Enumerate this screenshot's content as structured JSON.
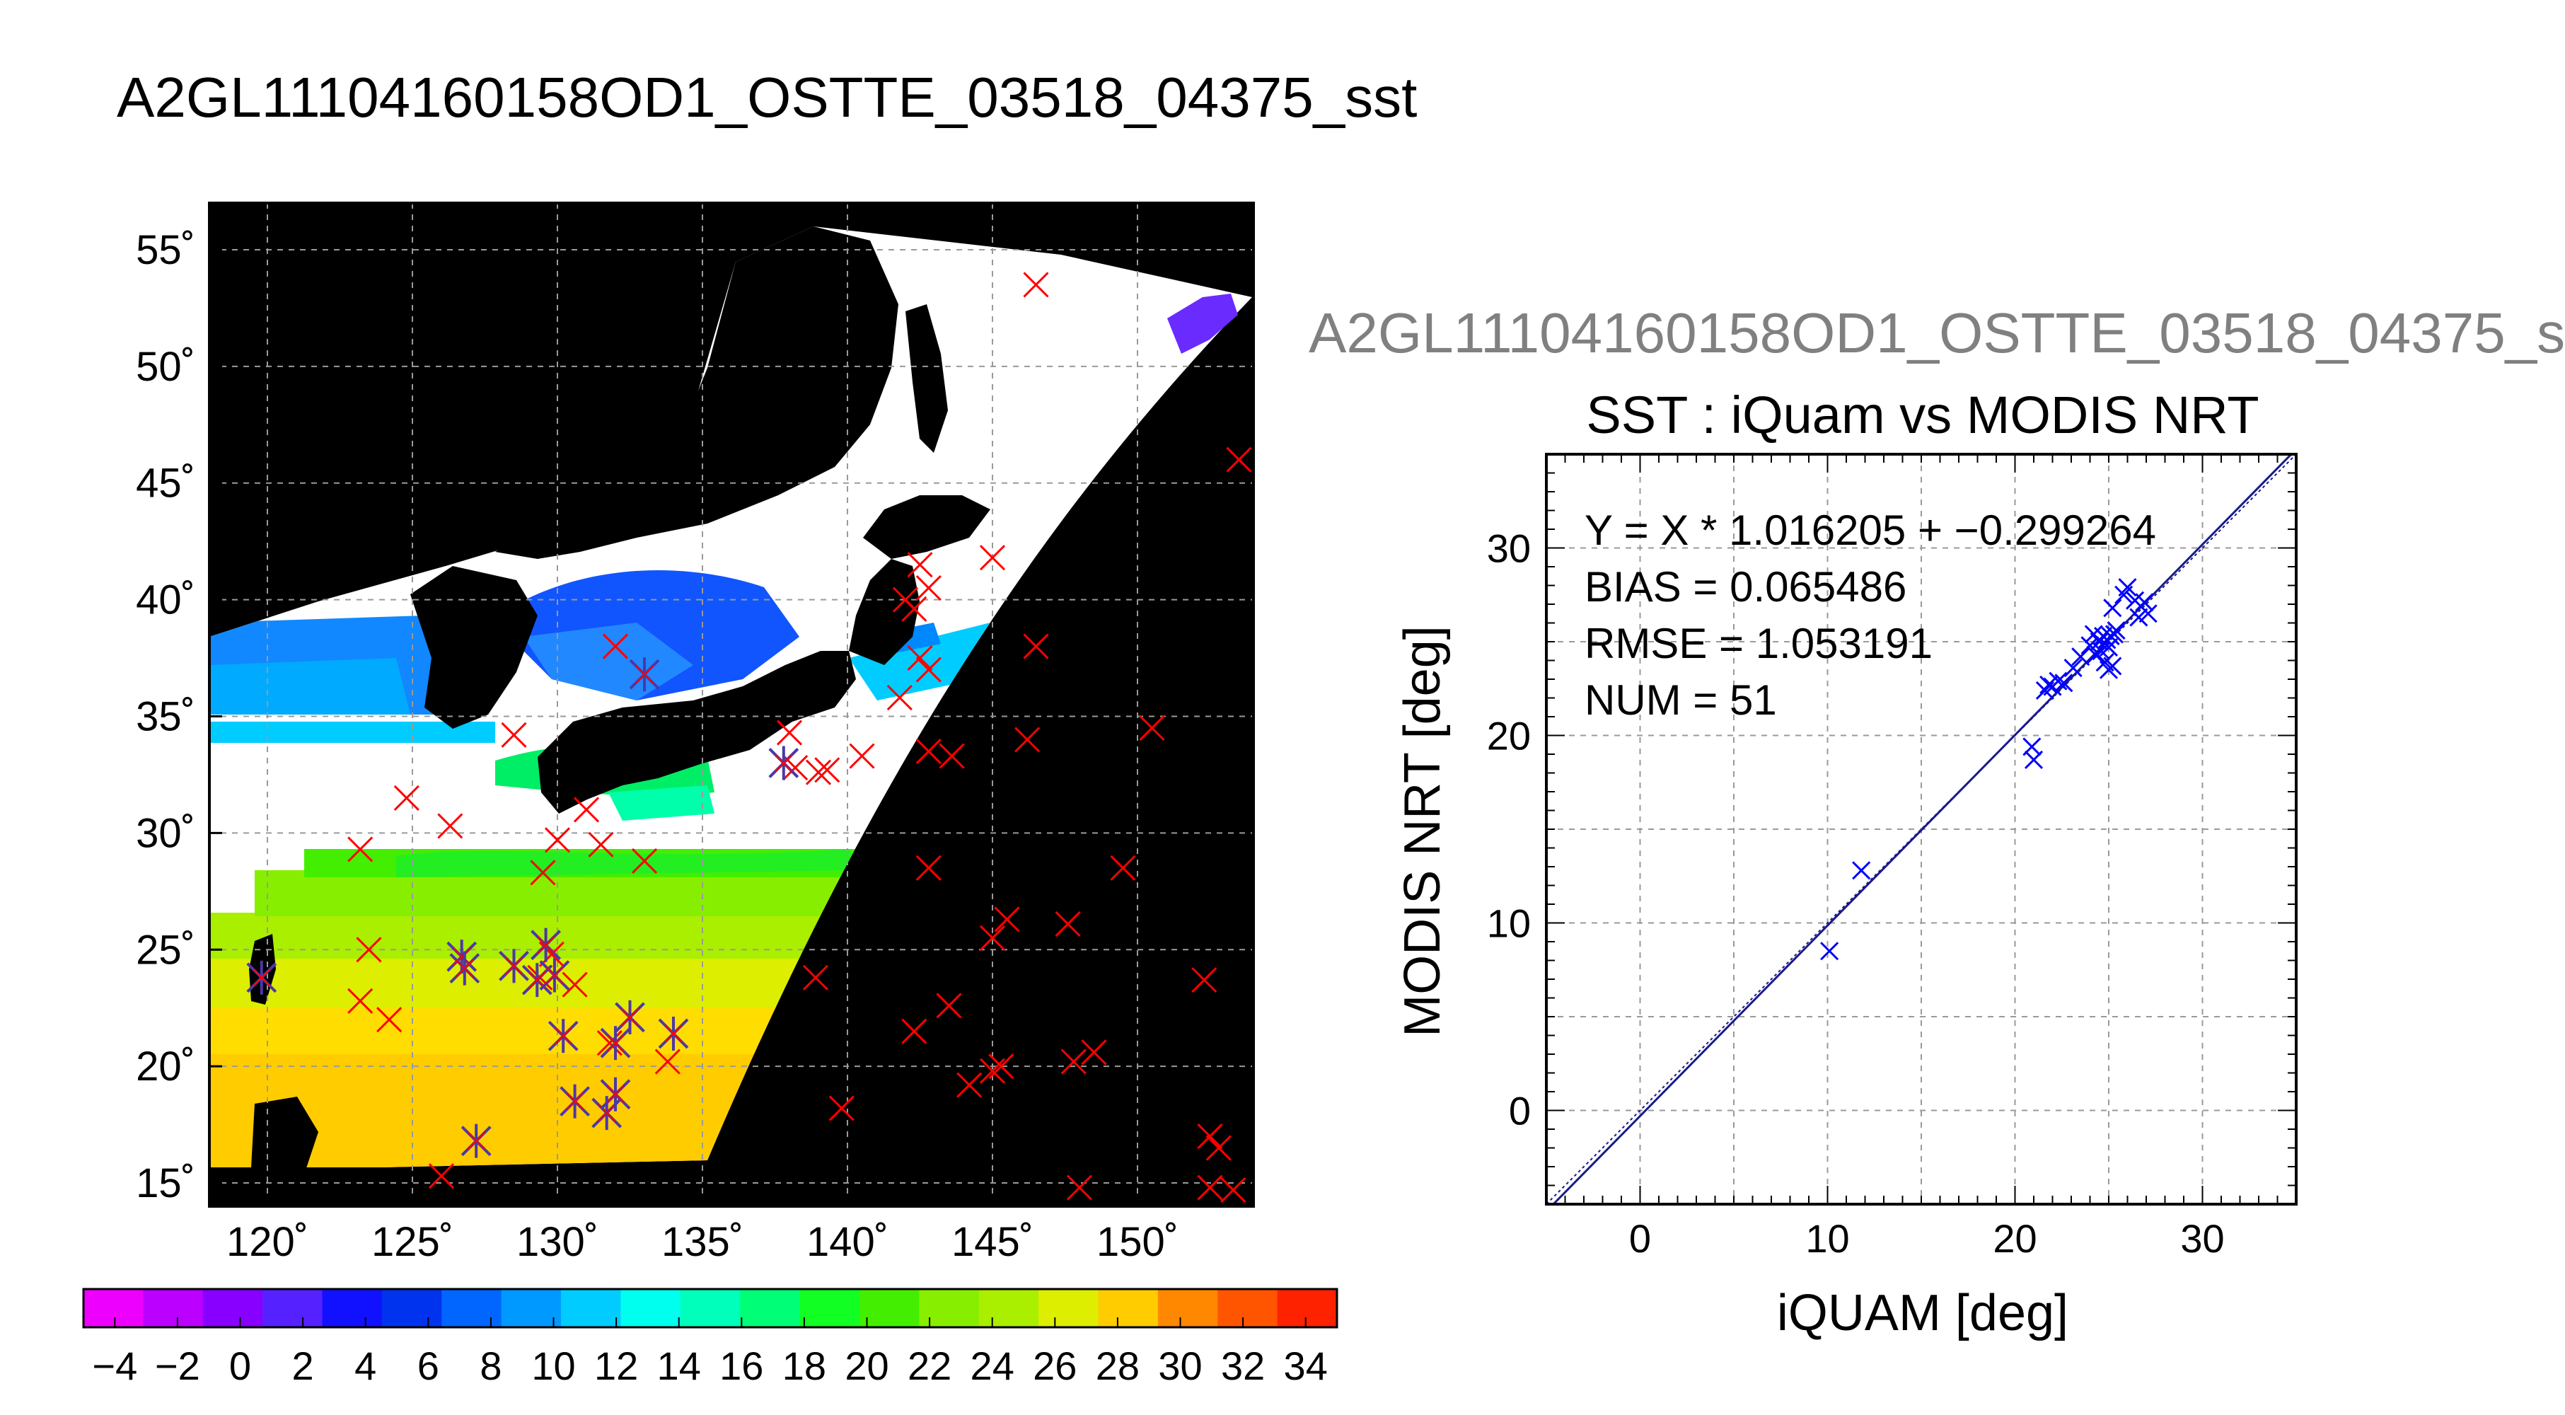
{
  "page": {
    "title": "A2GL11104160158OD1_OSTTE_03518_04375_sst",
    "side_title": "A2GL11104160158OD1_OSTTE_03518_04375_s"
  },
  "map": {
    "lat_ticks": [
      "55˚",
      "50˚",
      "45˚",
      "40˚",
      "35˚",
      "30˚",
      "25˚",
      "20˚",
      "15˚"
    ],
    "lon_ticks": [
      "120˚",
      "125˚",
      "130˚",
      "135˚",
      "140˚",
      "145˚",
      "150˚"
    ]
  },
  "colorbar": {
    "labels": [
      "−4",
      "−2",
      "0",
      "2",
      "4",
      "6",
      "8",
      "10",
      "12",
      "14",
      "16",
      "18",
      "20",
      "22",
      "24",
      "26",
      "28",
      "30",
      "32",
      "34"
    ],
    "range": [
      -5,
      35
    ],
    "colors": [
      "#ee00ff",
      "#bb00ff",
      "#8800ff",
      "#5522ff",
      "#1111ff",
      "#0033ee",
      "#0066ff",
      "#0099ff",
      "#00ccff",
      "#00ffee",
      "#00ffbb",
      "#00ff77",
      "#11ff22",
      "#44ee00",
      "#88ee00",
      "#aaee00",
      "#ddee00",
      "#ffcc00",
      "#ff8800",
      "#ff5500",
      "#ff2200"
    ]
  },
  "chart_data": [
    {
      "type": "scatter",
      "title": "SST : iQuam vs MODIS NRT",
      "xlabel": "iQUAM [deg]",
      "ylabel": "MODIS NRT [deg]",
      "xlim": [
        -5,
        35
      ],
      "ylim": [
        -5,
        35
      ],
      "xticks": [
        "0",
        "10",
        "20",
        "30"
      ],
      "yticks": [
        "0",
        "10",
        "20",
        "30"
      ],
      "grid": true,
      "annotations": [
        "Y = X * 1.016205 + −0.299264",
        "BIAS = 0.065486",
        "RMSE = 1.053191",
        "NUM = 51"
      ],
      "fit": {
        "slope": 1.016205,
        "intercept": -0.299264
      },
      "marker_color": "#0000ff",
      "points": [
        [
          10.1,
          8.5
        ],
        [
          11.8,
          12.8
        ],
        [
          20.9,
          19.4
        ],
        [
          21.0,
          18.7
        ],
        [
          21.6,
          22.4
        ],
        [
          21.8,
          22.7
        ],
        [
          22.0,
          22.6
        ],
        [
          22.3,
          22.9
        ],
        [
          22.6,
          22.8
        ],
        [
          23.1,
          23.6
        ],
        [
          23.5,
          24.2
        ],
        [
          24.0,
          24.8
        ],
        [
          24.2,
          25.4
        ],
        [
          24.3,
          24.3
        ],
        [
          24.5,
          25.0
        ],
        [
          24.6,
          24.5
        ],
        [
          24.7,
          25.3
        ],
        [
          24.8,
          23.9
        ],
        [
          24.9,
          25.1
        ],
        [
          25.0,
          23.5
        ],
        [
          25.0,
          24.7
        ],
        [
          25.1,
          25.3
        ],
        [
          25.2,
          23.7
        ],
        [
          25.3,
          25.4
        ],
        [
          25.4,
          25.6
        ],
        [
          25.2,
          26.8
        ],
        [
          25.8,
          27.5
        ],
        [
          26.0,
          27.9
        ],
        [
          26.4,
          27.2
        ],
        [
          26.6,
          26.3
        ],
        [
          26.9,
          27.1
        ],
        [
          27.1,
          26.5
        ]
      ]
    },
    {
      "type": "scatter",
      "title": "",
      "xlim": [
        118,
        154
      ],
      "ylim": [
        14,
        57
      ],
      "grid": true,
      "series": [
        {
          "name": "",
          "marker": "x",
          "color": "#ff0000",
          "points": [
            [
              146.5,
              53.5
            ],
            [
              153.5,
              46.0
            ],
            [
              146.5,
              38.0
            ],
            [
              145.0,
              41.8
            ],
            [
              142.5,
              41.5
            ],
            [
              142.0,
              40.0
            ],
            [
              142.8,
              40.5
            ],
            [
              142.3,
              39.6
            ],
            [
              142.5,
              37.5
            ],
            [
              142.8,
              37.0
            ],
            [
              141.8,
              35.8
            ],
            [
              140.5,
              33.3
            ],
            [
              142.8,
              33.5
            ],
            [
              143.6,
              33.3
            ],
            [
              146.2,
              34.0
            ],
            [
              150.5,
              34.5
            ],
            [
              138.2,
              32.8
            ],
            [
              139.0,
              32.6
            ],
            [
              139.3,
              32.7
            ],
            [
              138.0,
              34.3
            ],
            [
              133.0,
              28.8
            ],
            [
              132.0,
              38.0
            ],
            [
              131.0,
              31.0
            ],
            [
              130.0,
              29.7
            ],
            [
              131.5,
              29.5
            ],
            [
              129.5,
              28.3
            ],
            [
              128.5,
              34.2
            ],
            [
              126.3,
              30.3
            ],
            [
              124.8,
              31.5
            ],
            [
              123.2,
              29.3
            ],
            [
              123.5,
              25.0
            ],
            [
              123.2,
              22.8
            ],
            [
              124.2,
              22.0
            ],
            [
              126.0,
              15.3
            ],
            [
              129.8,
              24.8
            ],
            [
              130.6,
              23.5
            ],
            [
              131.8,
              21.0
            ],
            [
              133.8,
              20.2
            ],
            [
              138.9,
              23.8
            ],
            [
              139.8,
              18.2
            ],
            [
              142.8,
              28.5
            ],
            [
              145.5,
              26.3
            ],
            [
              145.0,
              25.5
            ],
            [
              147.6,
              26.1
            ],
            [
              149.5,
              28.5
            ],
            [
              152.3,
              23.7
            ],
            [
              143.5,
              22.6
            ],
            [
              142.3,
              21.5
            ],
            [
              144.2,
              19.2
            ],
            [
              145.3,
              20.0
            ],
            [
              145.0,
              19.8
            ],
            [
              147.8,
              20.2
            ],
            [
              148.5,
              20.6
            ],
            [
              148.0,
              14.8
            ],
            [
              152.5,
              17.0
            ],
            [
              152.8,
              16.5
            ],
            [
              152.5,
              14.8
            ],
            [
              153.3,
              14.7
            ],
            [
              119.8,
              23.8
            ],
            [
              129.4,
              23.8
            ]
          ]
        },
        {
          "name": "",
          "marker": "asterisk",
          "color": "#4b38a8",
          "points": [
            [
              133.0,
              36.8
            ],
            [
              137.8,
              33.0
            ],
            [
              126.7,
              24.7
            ],
            [
              126.8,
              24.2
            ],
            [
              128.5,
              24.3
            ],
            [
              129.3,
              23.7
            ],
            [
              129.6,
              25.2
            ],
            [
              129.9,
              23.9
            ],
            [
              130.2,
              21.3
            ],
            [
              132.0,
              21.0
            ],
            [
              132.5,
              22.1
            ],
            [
              134.0,
              21.4
            ],
            [
              127.2,
              16.8
            ],
            [
              130.6,
              18.5
            ],
            [
              131.7,
              18.0
            ],
            [
              132.0,
              18.8
            ],
            [
              119.8,
              23.8
            ]
          ]
        }
      ]
    }
  ]
}
